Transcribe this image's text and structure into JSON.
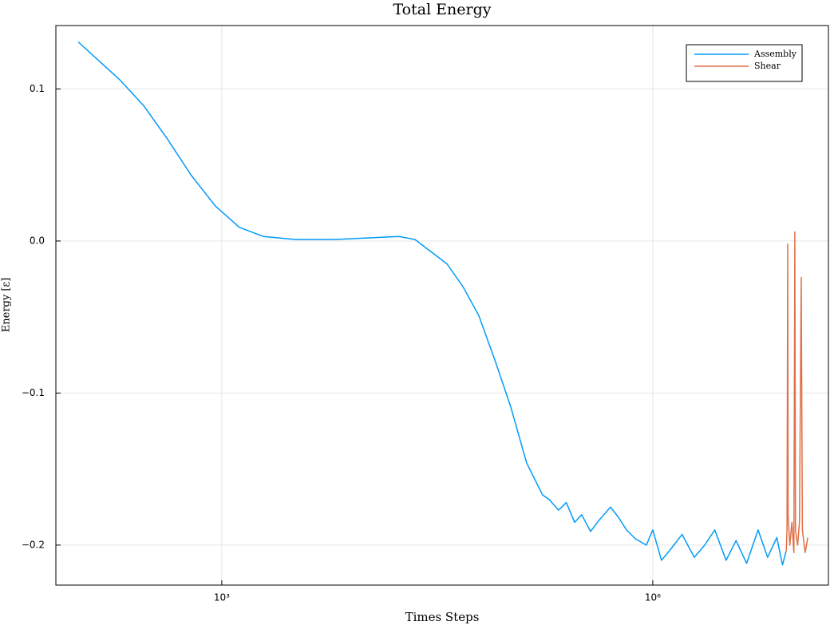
{
  "chart_data": {
    "type": "line",
    "title": "Total Energy",
    "x_label": "Times Steps",
    "y_label": "Energy [ε]",
    "xlog": true,
    "grid": true,
    "legend": "top-right",
    "xlim": [
      70,
      16700000
    ],
    "ylim": [
      -0.2263,
      0.1417
    ],
    "xticks": [
      {
        "value": 1000,
        "label": "10³"
      },
      {
        "value": 1000000,
        "label": "10⁶"
      }
    ],
    "yticks": [
      {
        "value": 0.1,
        "label": "0.1"
      },
      {
        "value": 0,
        "label": "0.0"
      },
      {
        "value": -0.1,
        "label": "−0.1"
      },
      {
        "value": -0.2,
        "label": "−0.2"
      }
    ],
    "series": [
      {
        "name": "Assembly",
        "color": "#009af9",
        "x": [
          100,
          195,
          286,
          419,
          615,
          903,
          1325,
          1945,
          3244,
          6150,
          10260,
          17100,
          22100,
          28560,
          36900,
          47700,
          61500,
          79400,
          102600,
          132500,
          171000,
          190000,
          221000,
          250000,
          285700,
          320000,
          369000,
          420000,
          508000,
          580000,
          656000,
          760000,
          903000,
          1000000,
          1150000,
          1325000,
          1600000,
          1945000,
          2300000,
          2700000,
          3240000,
          3800000,
          4500000,
          5410000,
          6300000,
          7300000,
          8000000,
          8470000
        ],
        "values": [
          0.131,
          0.106,
          0.089,
          0.067,
          0.043,
          0.023,
          0.009,
          0.003,
          0.001,
          0.001,
          0.002,
          0.003,
          0.001,
          -0.007,
          -0.015,
          -0.03,
          -0.049,
          -0.078,
          -0.109,
          -0.146,
          -0.167,
          -0.17,
          -0.177,
          -0.172,
          -0.185,
          -0.18,
          -0.191,
          -0.184,
          -0.175,
          -0.182,
          -0.19,
          -0.196,
          -0.2,
          -0.19,
          -0.21,
          -0.203,
          -0.193,
          -0.208,
          -0.2,
          -0.19,
          -0.21,
          -0.197,
          -0.212,
          -0.19,
          -0.208,
          -0.195,
          -0.213,
          -0.204
        ]
      },
      {
        "name": "Shear",
        "color": "#e26f46",
        "x": [
          8500000,
          8600000,
          8700000,
          8750000,
          9000000,
          9300000,
          9600000,
          9750000,
          9850000,
          10200000,
          10500000,
          10800000,
          11000000,
          11500000,
          12000000
        ],
        "values": [
          -0.204,
          -0.19,
          -0.002,
          -0.18,
          -0.2,
          -0.185,
          -0.205,
          0.006,
          -0.19,
          -0.2,
          -0.185,
          -0.024,
          -0.19,
          -0.205,
          -0.195
        ]
      }
    ]
  }
}
